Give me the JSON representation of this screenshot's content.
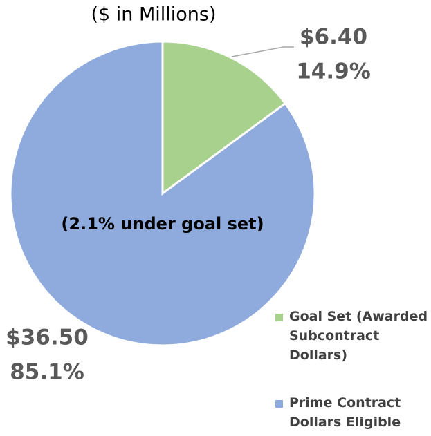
{
  "chart_data": {
    "type": "pie",
    "subtitle": "($ in Millions)",
    "annotation": "(2.1% under goal set)",
    "categories": [
      "Goal Set (Awarded Subcontract Dollars)",
      "Prime Contract Dollars Eligible"
    ],
    "values": [
      6.4,
      36.5
    ],
    "value_labels": [
      "$6.40",
      "$36.50"
    ],
    "percentages": [
      14.9,
      85.1
    ],
    "percentage_labels": [
      "14.9%",
      "85.1%"
    ],
    "colors": [
      "#a9d18e",
      "#8faadc"
    ],
    "legend": "right"
  }
}
